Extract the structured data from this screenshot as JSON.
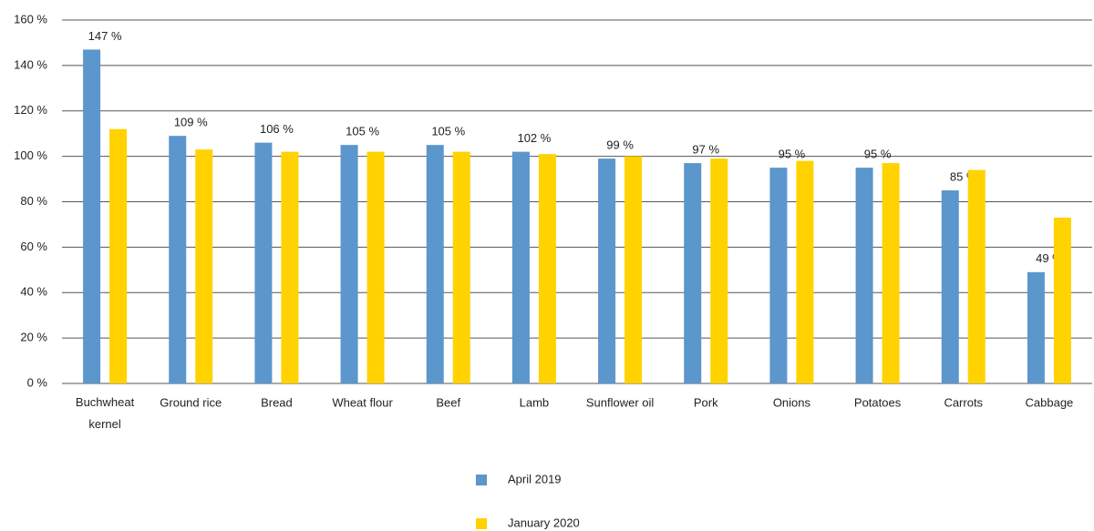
{
  "chart_data": {
    "type": "bar",
    "categories": [
      "Buchwheat kernel",
      "Ground rice",
      "Bread",
      "Wheat flour",
      "Beef",
      "Lamb",
      "Sunflower oil",
      "Pork",
      "Onions",
      "Potatoes",
      "Carrots",
      "Cabbage"
    ],
    "series": [
      {
        "name": "April 2019",
        "color": "#5b96cc",
        "values": [
          147,
          109,
          106,
          105,
          105,
          102,
          99,
          97,
          95,
          95,
          85,
          49
        ],
        "value_labels": [
          "147 %",
          "109 %",
          "106 %",
          "105 %",
          "105 %",
          "102 %",
          "99 %",
          "97 %",
          "95 %",
          "95 %",
          "85 %",
          "49 %"
        ]
      },
      {
        "name": "January 2020",
        "color": "#ffd200",
        "values": [
          112,
          103,
          102,
          102,
          102,
          101,
          100,
          99,
          98,
          97,
          94,
          73
        ]
      }
    ],
    "ylim": [
      0,
      160
    ],
    "yticks": [
      {
        "value": 0,
        "label": "0 %"
      },
      {
        "value": 20,
        "label": "20 %"
      },
      {
        "value": 40,
        "label": "40 %"
      },
      {
        "value": 60,
        "label": "60 %"
      },
      {
        "value": 80,
        "label": "80 %"
      },
      {
        "value": 100,
        "label": "100 %"
      },
      {
        "value": 120,
        "label": "120 %"
      },
      {
        "value": 140,
        "label": "140 %"
      },
      {
        "value": 160,
        "label": "160 %"
      }
    ],
    "grid": true,
    "legend": "bottom"
  }
}
